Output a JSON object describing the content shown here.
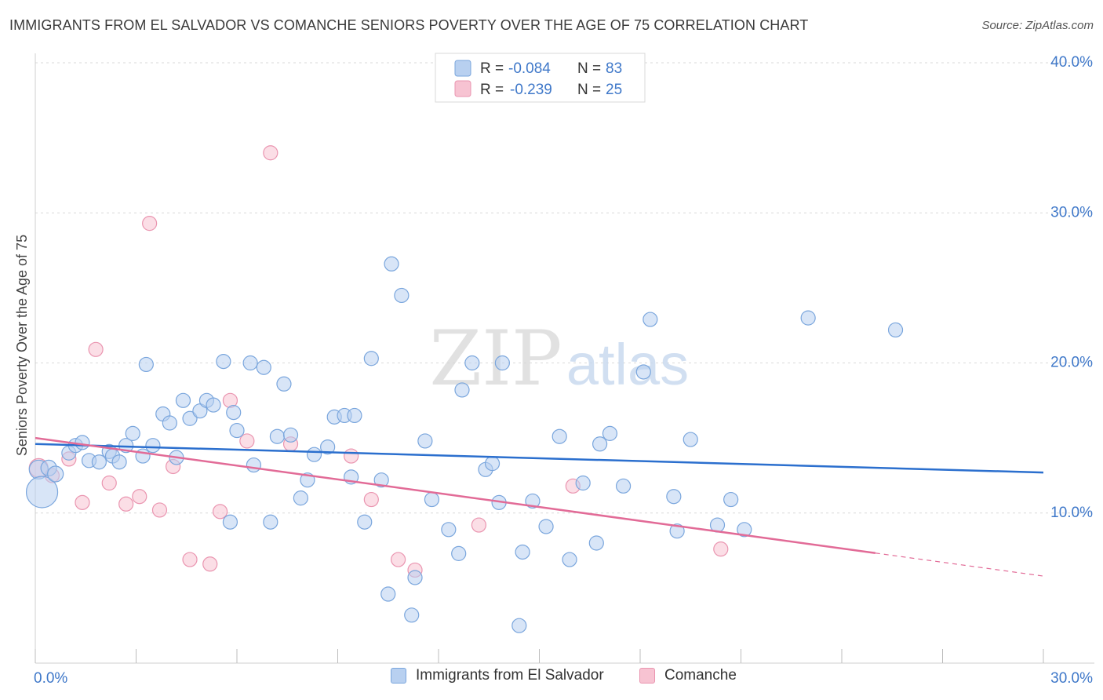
{
  "title": "IMMIGRANTS FROM EL SALVADOR VS COMANCHE SENIORS POVERTY OVER THE AGE OF 75 CORRELATION CHART",
  "source": "Source: ZipAtlas.com",
  "watermark": {
    "zip": "ZIP",
    "atlas": "atlas"
  },
  "legend_top": {
    "rows": [
      {
        "r_label": "R =",
        "r_value": "-0.084",
        "n_label": "N =",
        "n_value": "83"
      },
      {
        "r_label": "R =",
        "r_value": "-0.239",
        "n_label": "N =",
        "n_value": "25"
      }
    ]
  },
  "legend_bottom": {
    "items": [
      "Immigrants from El Salvador",
      "Comanche"
    ]
  },
  "colors": {
    "blue_fill": "#b8d0f0",
    "blue_stroke": "#7aa6dd",
    "blue_line": "#2b6fce",
    "pink_fill": "#f7c3d2",
    "pink_stroke": "#ea95b0",
    "pink_line": "#e26b97",
    "axis_text": "#3f78c9",
    "grid": "#d9d9d9"
  },
  "chart_data": {
    "type": "scatter",
    "title": "IMMIGRANTS FROM EL SALVADOR VS COMANCHE SENIORS POVERTY OVER THE AGE OF 75 CORRELATION CHART",
    "xlabel": "",
    "ylabel": "Seniors Poverty Over the Age of 75",
    "xlim": [
      0,
      30
    ],
    "ylim": [
      0,
      40
    ],
    "x_ticks": [
      "0.0%",
      "30.0%"
    ],
    "y_ticks": [
      {
        "value": 10,
        "label": "10.0%"
      },
      {
        "value": 20,
        "label": "20.0%"
      },
      {
        "value": 30,
        "label": "30.0%"
      },
      {
        "value": 40,
        "label": "40.0%"
      }
    ],
    "grid": true,
    "legend_position": "top-center",
    "series": [
      {
        "name": "Immigrants from El Salvador",
        "color": "blue",
        "trend": {
          "x": [
            0,
            30
          ],
          "y": [
            14.6,
            12.7
          ],
          "dashed_from": null
        },
        "points": [
          [
            0.1,
            12.9,
            12
          ],
          [
            0.2,
            11.4,
            20
          ],
          [
            0.4,
            13.0,
            10
          ],
          [
            0.6,
            12.6,
            10
          ],
          [
            1.0,
            14.0,
            9
          ],
          [
            1.2,
            14.5,
            9
          ],
          [
            1.4,
            14.7,
            9
          ],
          [
            1.6,
            13.5,
            9
          ],
          [
            1.9,
            13.4,
            9
          ],
          [
            2.2,
            14.1,
            9
          ],
          [
            2.3,
            13.8,
            9
          ],
          [
            2.5,
            13.4,
            9
          ],
          [
            2.7,
            14.5,
            9
          ],
          [
            2.9,
            15.3,
            9
          ],
          [
            3.2,
            13.8,
            9
          ],
          [
            3.3,
            19.9,
            9
          ],
          [
            3.5,
            14.5,
            9
          ],
          [
            3.8,
            16.6,
            9
          ],
          [
            4.0,
            16.0,
            9
          ],
          [
            4.2,
            13.7,
            9
          ],
          [
            4.4,
            17.5,
            9
          ],
          [
            4.6,
            16.3,
            9
          ],
          [
            4.9,
            16.8,
            9
          ],
          [
            5.1,
            17.5,
            9
          ],
          [
            5.3,
            17.2,
            9
          ],
          [
            5.6,
            20.1,
            9
          ],
          [
            5.8,
            9.4,
            9
          ],
          [
            5.9,
            16.7,
            9
          ],
          [
            6.0,
            15.5,
            9
          ],
          [
            6.4,
            20.0,
            9
          ],
          [
            6.5,
            13.2,
            9
          ],
          [
            6.8,
            19.7,
            9
          ],
          [
            7.0,
            9.4,
            9
          ],
          [
            7.2,
            15.1,
            9
          ],
          [
            7.4,
            18.6,
            9
          ],
          [
            7.6,
            15.2,
            9
          ],
          [
            7.9,
            11.0,
            9
          ],
          [
            8.1,
            12.2,
            9
          ],
          [
            8.3,
            13.9,
            9
          ],
          [
            8.7,
            14.4,
            9
          ],
          [
            8.9,
            16.4,
            9
          ],
          [
            9.2,
            16.5,
            9
          ],
          [
            9.4,
            12.4,
            9
          ],
          [
            9.5,
            16.5,
            9
          ],
          [
            9.8,
            9.4,
            9
          ],
          [
            10.0,
            20.3,
            9
          ],
          [
            10.3,
            12.2,
            9
          ],
          [
            10.6,
            26.6,
            9
          ],
          [
            10.5,
            4.6,
            9
          ],
          [
            10.9,
            24.5,
            9
          ],
          [
            11.2,
            3.2,
            9
          ],
          [
            11.3,
            5.7,
            9
          ],
          [
            11.6,
            14.8,
            9
          ],
          [
            11.8,
            10.9,
            9
          ],
          [
            12.3,
            8.9,
            9
          ],
          [
            12.6,
            7.3,
            9
          ],
          [
            12.7,
            18.2,
            9
          ],
          [
            13.0,
            20.0,
            9
          ],
          [
            13.4,
            12.9,
            9
          ],
          [
            13.6,
            13.3,
            9
          ],
          [
            13.8,
            10.7,
            9
          ],
          [
            13.9,
            20.0,
            9
          ],
          [
            14.4,
            2.5,
            9
          ],
          [
            14.5,
            7.4,
            9
          ],
          [
            14.8,
            10.8,
            9
          ],
          [
            15.2,
            9.1,
            9
          ],
          [
            15.6,
            15.1,
            9
          ],
          [
            15.9,
            6.9,
            9
          ],
          [
            16.3,
            12.0,
            9
          ],
          [
            16.7,
            8.0,
            9
          ],
          [
            16.8,
            14.6,
            9
          ],
          [
            17.1,
            15.3,
            9
          ],
          [
            17.5,
            11.8,
            9
          ],
          [
            18.1,
            19.4,
            9
          ],
          [
            18.3,
            22.9,
            9
          ],
          [
            19.0,
            11.1,
            9
          ],
          [
            19.1,
            8.8,
            9
          ],
          [
            19.5,
            14.9,
            9
          ],
          [
            20.3,
            9.2,
            9
          ],
          [
            20.7,
            10.9,
            9
          ],
          [
            21.1,
            8.9,
            9
          ],
          [
            23.0,
            23.0,
            9
          ],
          [
            25.6,
            22.2,
            9
          ]
        ]
      },
      {
        "name": "Comanche",
        "color": "pink",
        "trend": {
          "x": [
            0,
            30
          ],
          "y": [
            15.0,
            5.8
          ],
          "dashed_from": 25.0
        },
        "points": [
          [
            0.1,
            13.0,
            12
          ],
          [
            0.5,
            12.5,
            9
          ],
          [
            1.0,
            13.6,
            9
          ],
          [
            1.4,
            10.7,
            9
          ],
          [
            1.8,
            20.9,
            9
          ],
          [
            2.2,
            12.0,
            9
          ],
          [
            2.7,
            10.6,
            9
          ],
          [
            3.1,
            11.1,
            9
          ],
          [
            3.4,
            29.3,
            9
          ],
          [
            3.7,
            10.2,
            9
          ],
          [
            4.1,
            13.1,
            9
          ],
          [
            4.6,
            6.9,
            9
          ],
          [
            5.2,
            6.6,
            9
          ],
          [
            5.5,
            10.1,
            9
          ],
          [
            5.8,
            17.5,
            9
          ],
          [
            6.3,
            14.8,
            9
          ],
          [
            7.0,
            34.0,
            9
          ],
          [
            7.6,
            14.6,
            9
          ],
          [
            9.4,
            13.8,
            9
          ],
          [
            10.0,
            10.9,
            9
          ],
          [
            10.8,
            6.9,
            9
          ],
          [
            11.3,
            6.2,
            9
          ],
          [
            13.2,
            9.2,
            9
          ],
          [
            16.0,
            11.8,
            9
          ],
          [
            20.4,
            7.6,
            9
          ]
        ]
      }
    ]
  }
}
